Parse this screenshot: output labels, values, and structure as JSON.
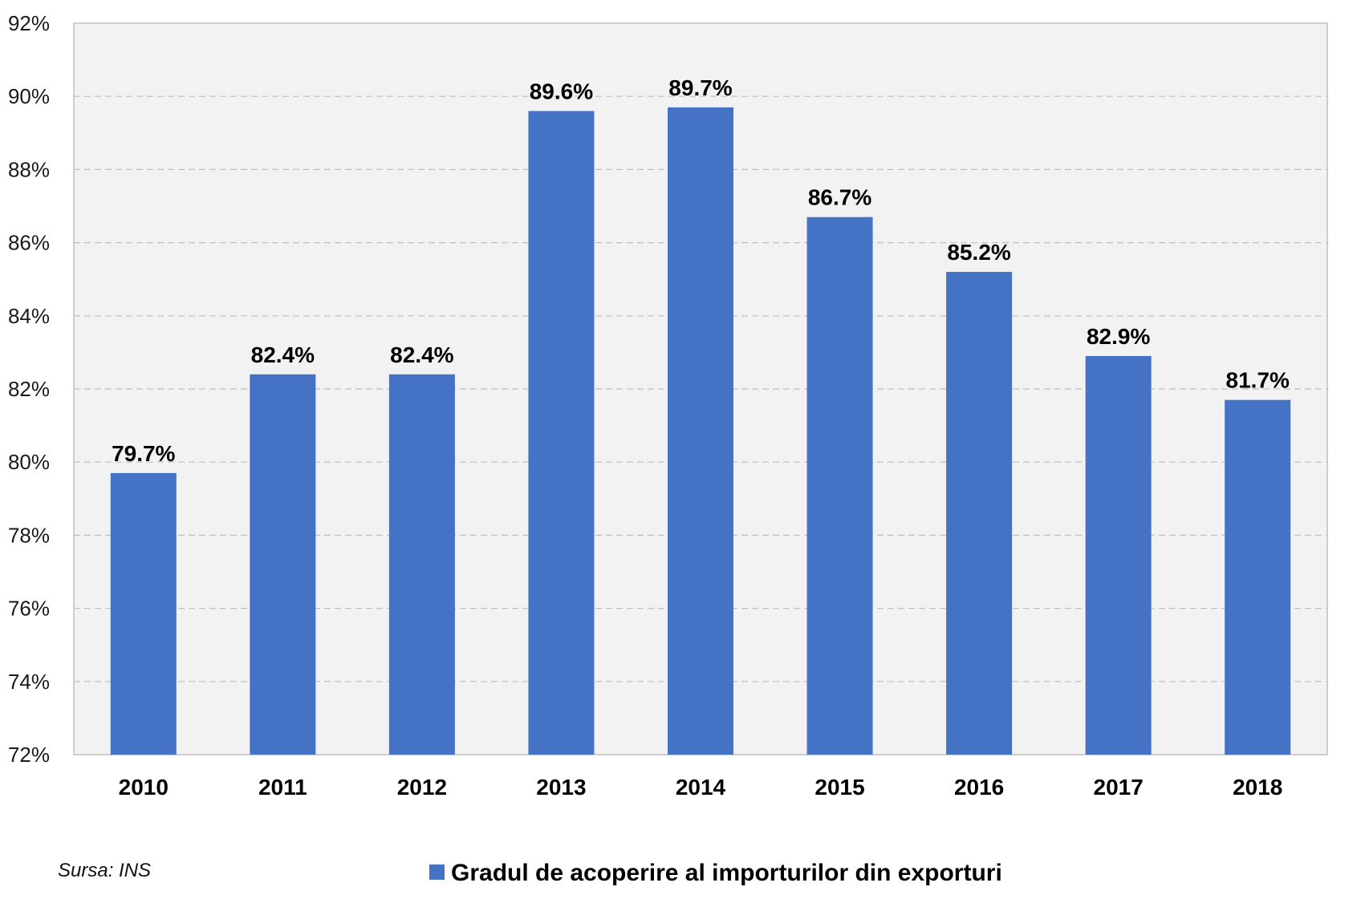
{
  "chart_data": {
    "type": "bar",
    "categories": [
      "2010",
      "2011",
      "2012",
      "2013",
      "2014",
      "2015",
      "2016",
      "2017",
      "2018"
    ],
    "series": [
      {
        "name": "Gradul de acoperire al importurilor din exporturi",
        "values": [
          79.7,
          82.4,
          82.4,
          89.6,
          89.7,
          86.7,
          85.2,
          82.9,
          81.7
        ],
        "data_labels": [
          "79.7%",
          "82.4%",
          "82.4%",
          "89.6%",
          "89.7%",
          "86.7%",
          "85.2%",
          "82.9%",
          "81.7%"
        ]
      }
    ],
    "ylim": [
      72,
      92
    ],
    "y_ticks": [
      72,
      74,
      76,
      78,
      80,
      82,
      84,
      86,
      88,
      90,
      92
    ],
    "y_tick_labels": [
      "72%",
      "74%",
      "76%",
      "78%",
      "80%",
      "82%",
      "84%",
      "86%",
      "88%",
      "90%",
      "92%"
    ],
    "title": "",
    "xlabel": "",
    "ylabel": "",
    "grid": "horizontal-dashed",
    "legend_position": "bottom-center",
    "bar_color": "#4472c4",
    "plot_background": "#f2f2f2"
  },
  "source": "Sursa: INS"
}
